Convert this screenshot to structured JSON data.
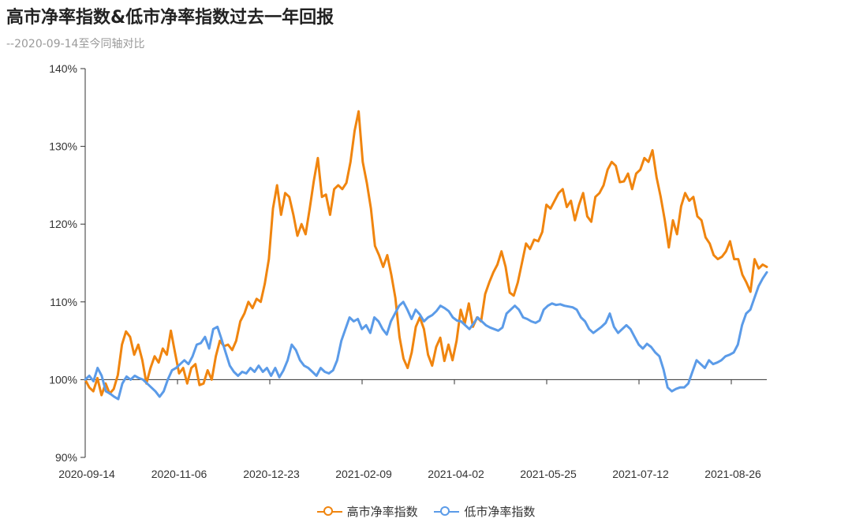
{
  "title": "高市净率指数&低市净率指数过去一年回报",
  "subtitle": "--2020-09-14至今同轴对比",
  "chart_data": {
    "type": "line",
    "title": "高市净率指数&低市净率指数过去一年回报",
    "subtitle": "--2020-09-14至今同轴对比",
    "x_ticks": [
      "2020-09-14",
      "2020-11-06",
      "2020-12-23",
      "2021-02-09",
      "2021-04-02",
      "2021-05-25",
      "2021-07-12",
      "2021-08-26"
    ],
    "y_ticks": [
      "90%",
      "100%",
      "110%",
      "120%",
      "130%",
      "140%"
    ],
    "ylim": [
      90,
      140
    ],
    "baseline": 100,
    "grid": false,
    "legend_position": "bottom",
    "series": [
      {
        "name": "高市净率指数",
        "color": "#F0850F",
        "values": [
          100,
          99.0,
          98.5,
          100.2,
          98.0,
          99.5,
          98.2,
          98.8,
          100.6,
          104.5,
          106.2,
          105.5,
          103.2,
          104.5,
          102.5,
          99.5,
          101.5,
          103.0,
          102.2,
          104.0,
          103.2,
          106.3,
          103.5,
          100.8,
          101.5,
          99.5,
          101.5,
          102.0,
          99.3,
          99.5,
          101.2,
          100.0,
          103.0,
          105.0,
          104.3,
          104.5,
          103.8,
          105.0,
          107.5,
          108.5,
          110.0,
          109.2,
          110.4,
          110.0,
          112.3,
          115.5,
          122.0,
          125.0,
          121.2,
          124.0,
          123.5,
          121.2,
          118.5,
          120.0,
          118.7,
          122.0,
          125.5,
          128.5,
          123.5,
          123.8,
          121.2,
          124.5,
          125.0,
          124.5,
          125.3,
          128.0,
          132.0,
          134.5,
          128.0,
          125.3,
          122.0,
          117.2,
          116.0,
          114.5,
          116.0,
          113.5,
          110.5,
          105.5,
          102.7,
          101.5,
          103.5,
          106.8,
          108.0,
          106.5,
          103.2,
          101.8,
          104.2,
          105.4,
          102.4,
          104.5,
          102.5,
          105.0,
          109.0,
          107.2,
          109.8,
          106.8,
          108.0,
          107.5,
          111.0,
          112.5,
          113.8,
          114.8,
          116.5,
          114.5,
          111.2,
          110.8,
          112.5,
          115.0,
          117.5,
          116.8,
          118.0,
          117.8,
          119.0,
          122.5,
          122.0,
          123.0,
          124.0,
          124.5,
          122.2,
          123.0,
          120.5,
          122.5,
          124.0,
          121.0,
          120.3,
          123.5,
          124.0,
          125.0,
          127.0,
          128.0,
          127.5,
          125.4,
          125.5,
          126.5,
          124.5,
          126.5,
          127.0,
          128.5,
          128.0,
          129.5,
          126.0,
          123.5,
          120.5,
          117.0,
          120.5,
          118.7,
          122.3,
          124.0,
          123.0,
          123.5,
          121.0,
          120.5,
          118.3,
          117.5,
          116.0,
          115.5,
          115.8,
          116.5,
          117.8,
          115.5,
          115.5,
          113.5,
          112.5,
          111.3,
          115.5,
          114.3,
          114.8,
          114.5
        ]
      },
      {
        "name": "低市净率指数",
        "color": "#5B9BE8",
        "values": [
          100,
          100.5,
          99.8,
          101.5,
          100.5,
          98.5,
          98.2,
          97.8,
          97.5,
          99.5,
          100.4,
          100.0,
          100.5,
          100.2,
          100.0,
          99.5,
          99.0,
          98.5,
          97.8,
          98.5,
          100.0,
          101.2,
          101.5,
          102.0,
          102.5,
          102.0,
          103.0,
          104.5,
          104.7,
          105.5,
          104.0,
          106.5,
          106.8,
          105.2,
          103.5,
          101.8,
          101.0,
          100.5,
          101.0,
          100.8,
          101.5,
          101.0,
          101.8,
          101.0,
          101.5,
          100.5,
          101.5,
          100.3,
          101.2,
          102.5,
          104.5,
          103.8,
          102.5,
          101.8,
          101.5,
          101.0,
          100.5,
          101.5,
          101.0,
          100.8,
          101.2,
          102.5,
          105.0,
          106.5,
          108.0,
          107.5,
          107.8,
          106.5,
          107.0,
          106.0,
          108.0,
          107.5,
          106.5,
          105.8,
          107.5,
          108.5,
          109.5,
          110.0,
          109.0,
          107.8,
          109.0,
          108.4,
          107.5,
          108.0,
          108.3,
          108.8,
          109.5,
          109.2,
          108.8,
          108.0,
          107.6,
          107.5,
          107.0,
          106.5,
          107.2,
          108.0,
          107.5,
          107.0,
          106.7,
          106.5,
          106.3,
          106.7,
          108.5,
          109.0,
          109.5,
          109.0,
          108.0,
          107.8,
          107.5,
          107.3,
          107.6,
          109.0,
          109.5,
          109.8,
          109.6,
          109.7,
          109.5,
          109.4,
          109.3,
          109.0,
          108.0,
          107.5,
          106.5,
          106.0,
          106.4,
          106.8,
          107.3,
          108.5,
          106.8,
          106.0,
          106.5,
          107.0,
          106.5,
          105.5,
          104.5,
          104.0,
          104.6,
          104.2,
          103.5,
          103.0,
          101.3,
          99.0,
          98.5,
          98.8,
          99.0,
          99.0,
          99.5,
          101.0,
          102.5,
          102.0,
          101.5,
          102.5,
          102.0,
          102.2,
          102.5,
          103.0,
          103.2,
          103.5,
          104.5,
          107.0,
          108.5,
          109.0,
          110.5,
          112.0,
          113.0,
          113.8
        ]
      }
    ]
  }
}
